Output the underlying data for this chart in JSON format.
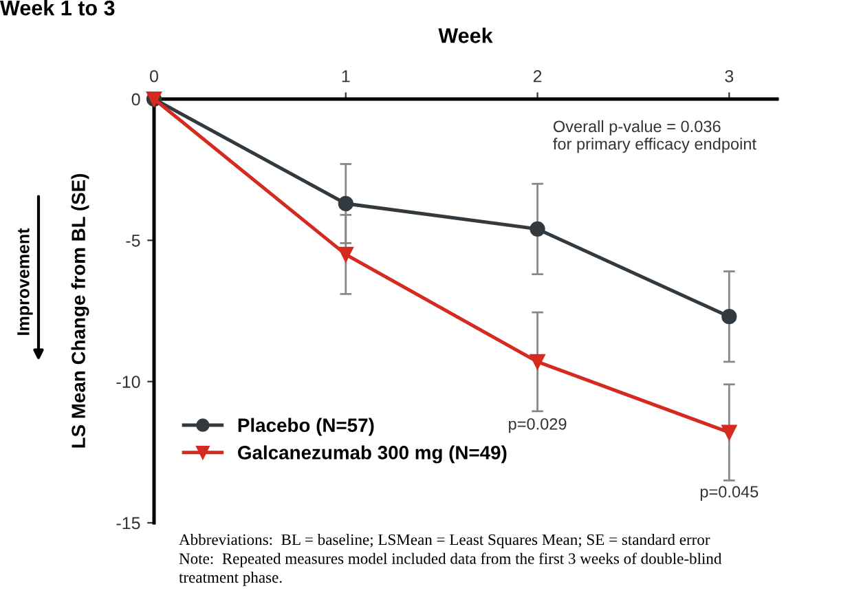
{
  "chart_data": {
    "type": "line",
    "title": "Week 1 to 3",
    "xlabel": "Week",
    "ylabel": "LS Mean Change from BL (SE)",
    "x": [
      0,
      1,
      2,
      3
    ],
    "xlim": [
      0,
      3.25
    ],
    "xticks": [
      0,
      1,
      2,
      3
    ],
    "ylim": [
      -15,
      0
    ],
    "yticks": [
      0,
      -5,
      -10,
      -15
    ],
    "series": [
      {
        "name": "Placebo (N=57)",
        "color": "#333a3f",
        "marker": "circle",
        "values": [
          0,
          -3.7,
          -4.6,
          -7.7
        ],
        "errors": [
          null,
          1.4,
          1.6,
          1.6
        ]
      },
      {
        "name": "Galcanezumab 300 mg (N=49)",
        "color": "#d42a20",
        "marker": "triangle",
        "values": [
          0,
          -5.5,
          -9.3,
          -11.8
        ],
        "errors": [
          null,
          1.4,
          1.75,
          1.7
        ]
      }
    ],
    "legend": "bottom left",
    "grid": false,
    "line_style": "solid",
    "annotations": [
      "Improvement",
      "p=0.029",
      "p=0.045",
      "Overall p-value = 0.036\nfor primary efficacy endpoint",
      "Abbreviations:  BL = baseline; LSMean = Least Squares Mean; SE = standard error\nNote:  Repeated measures model included data from the first 3 weeks of double-blind\ntreatment phase."
    ]
  }
}
